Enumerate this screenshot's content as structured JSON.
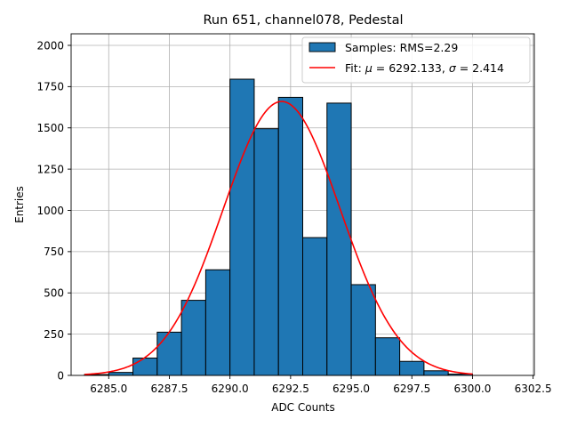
{
  "chart_data": {
    "type": "bar",
    "title": "Run 651, channel078, Pedestal",
    "xlabel": "ADC Counts",
    "ylabel": "Entries",
    "xlim": [
      6283.45,
      6302.55
    ],
    "ylim": [
      0,
      2070
    ],
    "xticks": [
      6285.0,
      6287.5,
      6290.0,
      6292.5,
      6295.0,
      6297.5,
      6300.0,
      6302.5
    ],
    "xtick_labels": [
      "6285.0",
      "6287.5",
      "6290.0",
      "6292.5",
      "6295.0",
      "6297.5",
      "6300.0",
      "6302.5"
    ],
    "yticks": [
      0,
      250,
      500,
      750,
      1000,
      1250,
      1500,
      1750,
      2000
    ],
    "ytick_labels": [
      "0",
      "250",
      "500",
      "750",
      "1000",
      "1250",
      "1500",
      "1750",
      "2000"
    ],
    "grid": true,
    "legend_position": "top-right",
    "histogram": {
      "name": "Samples: RMS=2.29",
      "color": "#1f77b4",
      "edge_color": "#000000",
      "bin_edges": [
        6284,
        6285,
        6286,
        6287,
        6288,
        6289,
        6290,
        6291,
        6292,
        6293,
        6294,
        6295,
        6296,
        6297,
        6298,
        6299,
        6300
      ],
      "counts": [
        5,
        18,
        105,
        262,
        455,
        640,
        1795,
        1495,
        1685,
        835,
        1650,
        550,
        228,
        85,
        28,
        8
      ]
    },
    "fit": {
      "name_prefix": "Fit: ",
      "mu_label": "μ",
      "sigma_label": "σ",
      "mu_text": " = 6292.133, ",
      "sigma_text": " = 2.414",
      "color": "#ff0000",
      "mu": 6292.133,
      "sigma": 2.414,
      "amplitude": 1660,
      "x_range": [
        6284,
        6300
      ]
    }
  }
}
